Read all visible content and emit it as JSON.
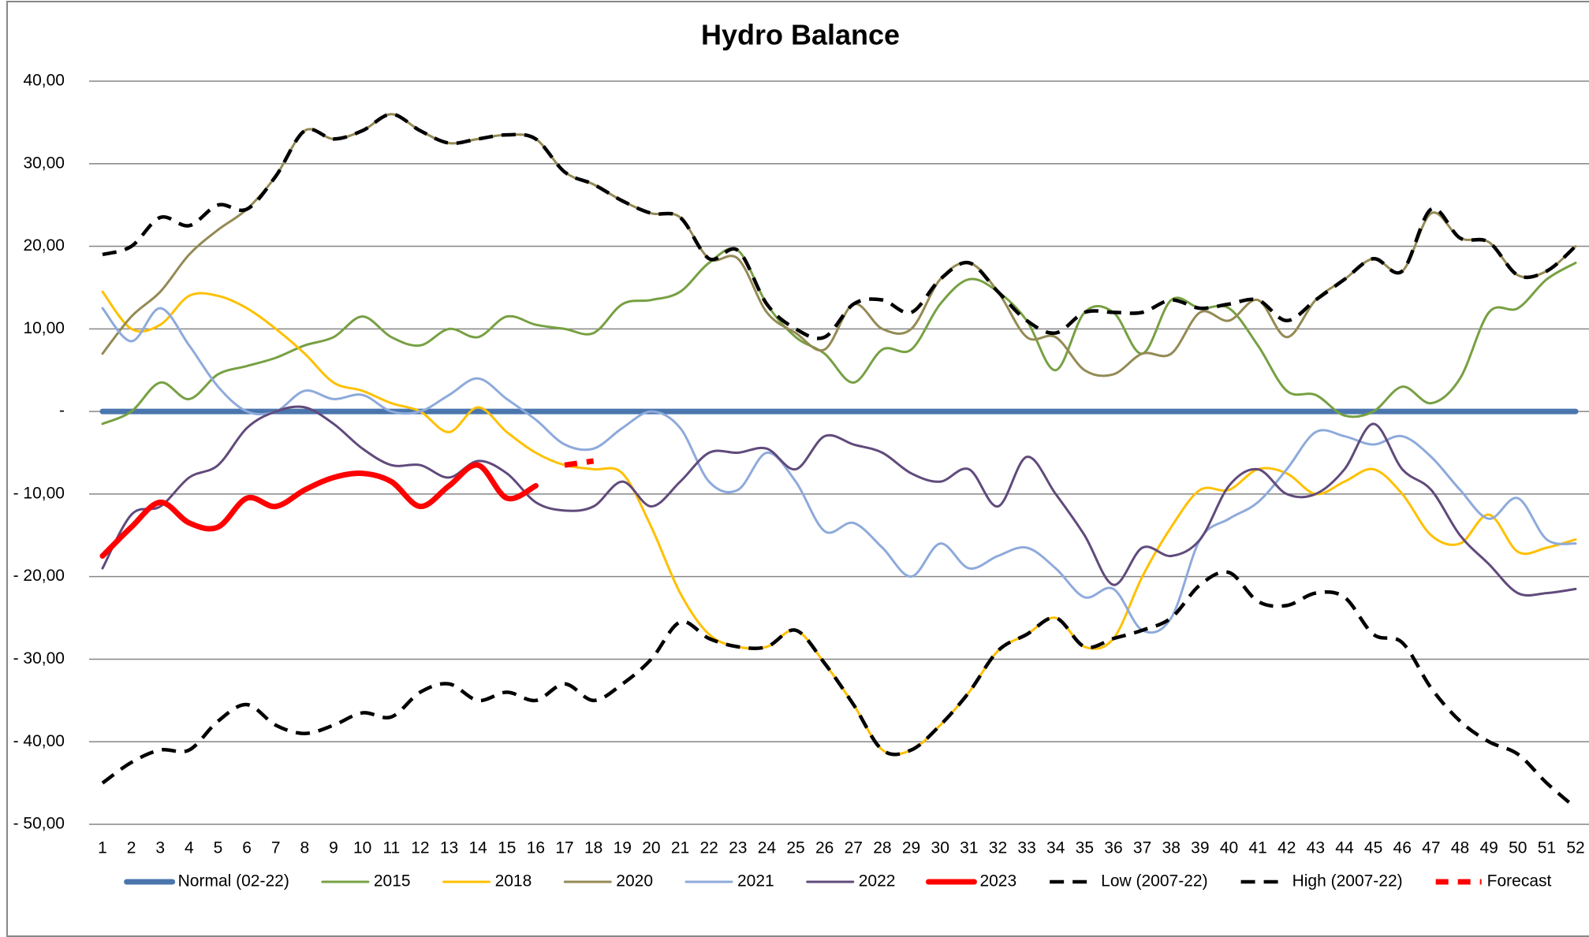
{
  "chart_data": {
    "type": "line",
    "title": "Hydro Balance",
    "categories": [
      "1",
      "2",
      "3",
      "4",
      "5",
      "6",
      "7",
      "8",
      "9",
      "10",
      "11",
      "12",
      "13",
      "14",
      "15",
      "16",
      "17",
      "18",
      "19",
      "20",
      "21",
      "22",
      "23",
      "24",
      "25",
      "26",
      "27",
      "28",
      "29",
      "30",
      "31",
      "32",
      "33",
      "34",
      "35",
      "36",
      "37",
      "38",
      "39",
      "40",
      "41",
      "42",
      "43",
      "44",
      "45",
      "46",
      "47",
      "48",
      "49",
      "50",
      "51",
      "52"
    ],
    "ylim": [
      -50,
      40
    ],
    "yticks": [
      {
        "value": 40,
        "label": "40,00"
      },
      {
        "value": 30,
        "label": "30,00"
      },
      {
        "value": 20,
        "label": "20,00"
      },
      {
        "value": 10,
        "label": "10,00"
      },
      {
        "value": 0,
        "label": "-"
      },
      {
        "value": -10,
        "label": "- 10,00"
      },
      {
        "value": -20,
        "label": "- 20,00"
      },
      {
        "value": -30,
        "label": "- 30,00"
      },
      {
        "value": -40,
        "label": "- 40,00"
      },
      {
        "value": -50,
        "label": "- 50,00"
      }
    ],
    "grid": true,
    "legend": "bottom",
    "series": [
      {
        "name": "Normal (02-22)",
        "color": "#4a76ad",
        "line_style": "solid",
        "weight": "heavy",
        "values": [
          0,
          0,
          0,
          0,
          0,
          0,
          0,
          0,
          0,
          0,
          0,
          0,
          0,
          0,
          0,
          0,
          0,
          0,
          0,
          0,
          0,
          0,
          0,
          0,
          0,
          0,
          0,
          0,
          0,
          0,
          0,
          0,
          0,
          0,
          0,
          0,
          0,
          0,
          0,
          0,
          0,
          0,
          0,
          0,
          0,
          0,
          0,
          0,
          0,
          0,
          0,
          0
        ]
      },
      {
        "name": "2015",
        "color": "#77a043",
        "line_style": "solid",
        "weight": "normal",
        "values": [
          -1.5,
          0,
          3.5,
          1.5,
          4.5,
          5.5,
          6.5,
          8,
          9,
          11.5,
          9,
          8,
          10,
          9,
          11.5,
          10.5,
          10,
          9.5,
          13,
          13.5,
          14.5,
          18,
          19.5,
          13,
          9,
          7,
          3.5,
          7.5,
          7.5,
          13,
          16,
          14.5,
          11,
          5,
          12,
          12,
          7,
          13.5,
          12.5,
          12.5,
          8,
          2.5,
          2,
          -0.5,
          0,
          3,
          1,
          4,
          12,
          12.5,
          16,
          18
        ]
      },
      {
        "name": "2018",
        "color": "#ffc000",
        "line_style": "solid",
        "weight": "normal",
        "values": [
          14.5,
          10,
          10.5,
          14,
          14,
          12.5,
          10,
          7,
          3.5,
          2.5,
          1,
          0,
          -2.5,
          0.5,
          -2.5,
          -5,
          -6.5,
          -7,
          -7.5,
          -14,
          -22,
          -27,
          -28.5,
          -28.5,
          -26.5,
          -30.5,
          -35.5,
          -41,
          -41,
          -38,
          -34,
          -29,
          -27,
          -25,
          -28.5,
          -27.5,
          -20,
          -14,
          -9.5,
          -9.5,
          -7,
          -7.5,
          -10,
          -8.5,
          -7,
          -10,
          -15,
          -16,
          -12.5,
          -17,
          -16.5,
          -15.5
        ]
      },
      {
        "name": "2020",
        "color": "#948a54",
        "line_style": "solid",
        "weight": "normal",
        "values": [
          7,
          11.5,
          14.5,
          19,
          22,
          24.5,
          28.5,
          34,
          33,
          34,
          36,
          34,
          32.5,
          33,
          33.5,
          33,
          29,
          27.5,
          25.5,
          24,
          23.5,
          18.5,
          18.5,
          12,
          9.5,
          7.5,
          13,
          10,
          10,
          16,
          18,
          14.5,
          9,
          9,
          5,
          4.5,
          7,
          7,
          12,
          11,
          13.5,
          9,
          13.5,
          16,
          18.5,
          17,
          24,
          21,
          20.5,
          16.5,
          17,
          20
        ]
      },
      {
        "name": "2021",
        "color": "#8eaadb",
        "line_style": "solid",
        "weight": "normal",
        "values": [
          12.5,
          8.5,
          12.5,
          8,
          3,
          0,
          0,
          2.5,
          1.5,
          2,
          0,
          0,
          2,
          4,
          1.5,
          -1,
          -4,
          -4.5,
          -2,
          0,
          -2,
          -8.5,
          -9.5,
          -5,
          -8.5,
          -14.5,
          -13.5,
          -16.5,
          -20,
          -16,
          -19,
          -17.5,
          -16.5,
          -19,
          -22.5,
          -21.5,
          -26.5,
          -25,
          -15.5,
          -13,
          -11,
          -7,
          -2.5,
          -3,
          -4,
          -3,
          -5.5,
          -9.5,
          -13,
          -10.5,
          -15.5,
          -16
        ]
      },
      {
        "name": "2022",
        "color": "#604a7b",
        "line_style": "solid",
        "weight": "normal",
        "values": [
          -19,
          -12.5,
          -11.5,
          -8,
          -6.5,
          -2,
          0,
          0.5,
          -1.5,
          -4.5,
          -6.5,
          -6.5,
          -8,
          -6,
          -7.5,
          -11,
          -12,
          -11.5,
          -8.5,
          -11.5,
          -8.5,
          -5,
          -5,
          -4.5,
          -7,
          -3,
          -4,
          -5,
          -7.5,
          -8.5,
          -7,
          -11.5,
          -5.5,
          -10,
          -15,
          -21,
          -16.5,
          -17.5,
          -15.5,
          -9,
          -7,
          -10,
          -10,
          -7,
          -1.5,
          -7,
          -9.5,
          -15,
          -18.5,
          -22,
          -22,
          -21.5
        ]
      },
      {
        "name": "2023",
        "color": "#ff0000",
        "line_style": "solid",
        "weight": "heavy",
        "values": [
          -17.5,
          -14,
          -11,
          -13.5,
          -14,
          -10.5,
          -11.5,
          -9.5,
          -8,
          -7.5,
          -8.5,
          -11.5,
          -9,
          -6.5,
          -10.5,
          -9,
          null,
          null,
          null,
          null,
          null,
          null,
          null,
          null,
          null,
          null,
          null,
          null,
          null,
          null,
          null,
          null,
          null,
          null,
          null,
          null,
          null,
          null,
          null,
          null,
          null,
          null,
          null,
          null,
          null,
          null,
          null,
          null,
          null,
          null,
          null,
          null
        ]
      },
      {
        "name": "Low (2007-22)",
        "color": "#000000",
        "line_style": "dashed",
        "weight": "normal",
        "values": [
          -45,
          -42.5,
          -41,
          -41,
          -37.5,
          -35.5,
          -38,
          -39,
          -38,
          -36.5,
          -37,
          -34,
          -33,
          -35,
          -34,
          -35,
          -33,
          -35,
          -33,
          -30,
          -25.5,
          -27.5,
          -28.5,
          -28.5,
          -26.5,
          -30.5,
          -35.5,
          -41,
          -41,
          -38,
          -34,
          -29,
          -27,
          -25,
          -28.5,
          -27.5,
          -26.5,
          -25,
          -21,
          -19.5,
          -23,
          -23.5,
          -22,
          -22.5,
          -27,
          -28,
          -33.5,
          -37.5,
          -40,
          -41.5,
          -45,
          -48
        ]
      },
      {
        "name": "High (2007-22)",
        "color": "#000000",
        "line_style": "dashed",
        "weight": "normal",
        "values": [
          19,
          20,
          23.5,
          22.5,
          25,
          24.5,
          28.5,
          34,
          33,
          34,
          36,
          34,
          32.5,
          33,
          33.5,
          33,
          29,
          27.5,
          25.5,
          24,
          23.5,
          18.5,
          19.5,
          13,
          10,
          9,
          13,
          13.5,
          12,
          16,
          18,
          14.5,
          11,
          9.5,
          12,
          12,
          12,
          13.5,
          12.5,
          13,
          13.5,
          11,
          13.5,
          16,
          18.5,
          17,
          24.5,
          21,
          20.5,
          16.5,
          17,
          20
        ]
      },
      {
        "name": "Forecast",
        "color": "#ff0000",
        "line_style": "dashed",
        "weight": "heavy",
        "values": [
          null,
          null,
          null,
          null,
          null,
          null,
          null,
          null,
          null,
          null,
          null,
          null,
          null,
          null,
          null,
          null,
          -6.5,
          -6,
          null,
          null,
          null,
          null,
          null,
          null,
          null,
          null,
          null,
          null,
          null,
          null,
          null,
          null,
          null,
          null,
          null,
          null,
          null,
          null,
          null,
          null,
          null,
          null,
          null,
          null,
          null,
          null,
          null,
          null,
          null,
          null,
          null,
          null
        ]
      }
    ]
  }
}
